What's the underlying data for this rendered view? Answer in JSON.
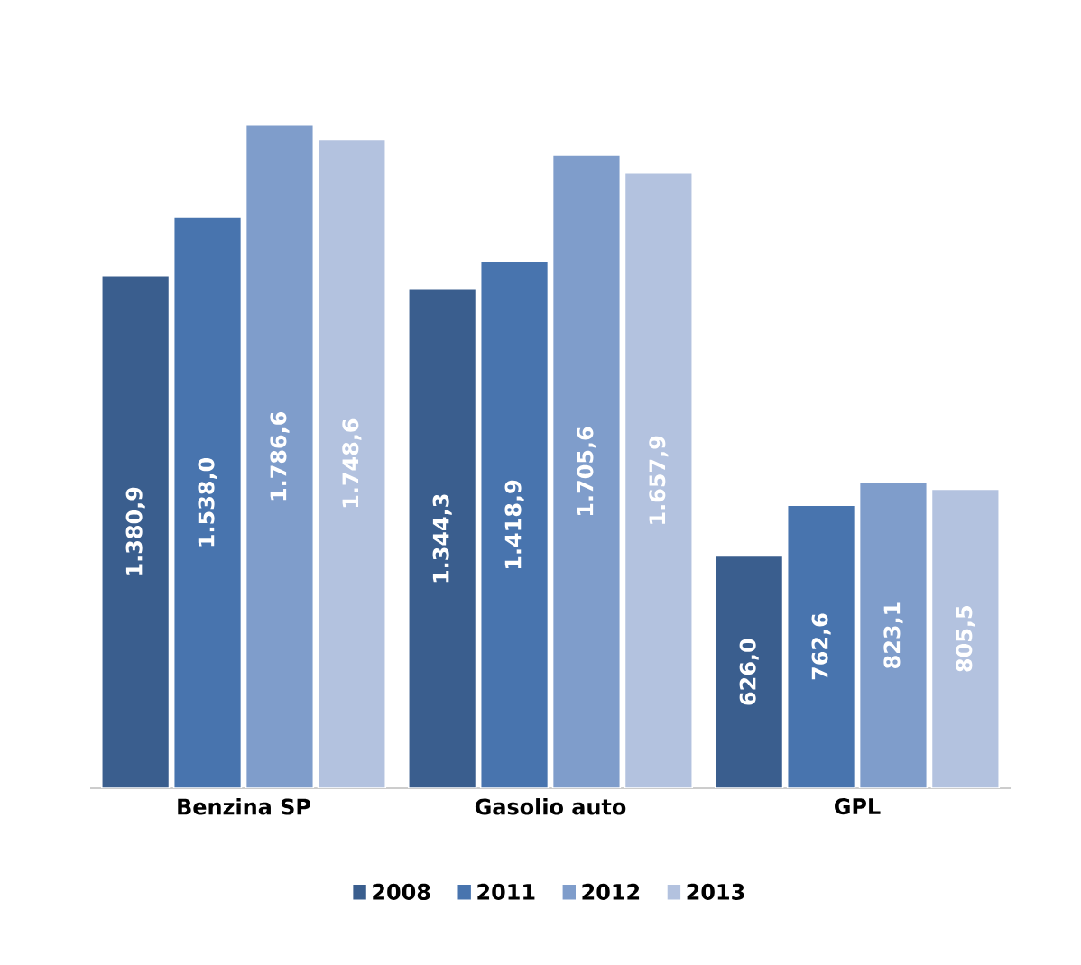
{
  "chart_data": {
    "type": "bar",
    "categories": [
      "Benzina SP",
      "Gasolio auto",
      "GPL"
    ],
    "series": [
      {
        "name": "2008",
        "color": "#3a5e8e",
        "values": [
          1380.9,
          1344.3,
          626.0
        ],
        "value_labels": [
          "1.380,9",
          "1.344,3",
          "626,0"
        ]
      },
      {
        "name": "2011",
        "color": "#4874ae",
        "values": [
          1538.0,
          1418.9,
          762.6
        ],
        "value_labels": [
          "1.538,0",
          "1.418,9",
          "762,6"
        ]
      },
      {
        "name": "2012",
        "color": "#7f9dcb",
        "values": [
          1786.6,
          1705.6,
          823.1
        ],
        "value_labels": [
          "1.786,6",
          "1.705,6",
          "823,1"
        ]
      },
      {
        "name": "2013",
        "color": "#b3c2df",
        "values": [
          1748.6,
          1657.9,
          805.5
        ],
        "value_labels": [
          "1.748,6",
          "1.657,9",
          "805,5"
        ]
      }
    ],
    "legend": "bottom"
  }
}
